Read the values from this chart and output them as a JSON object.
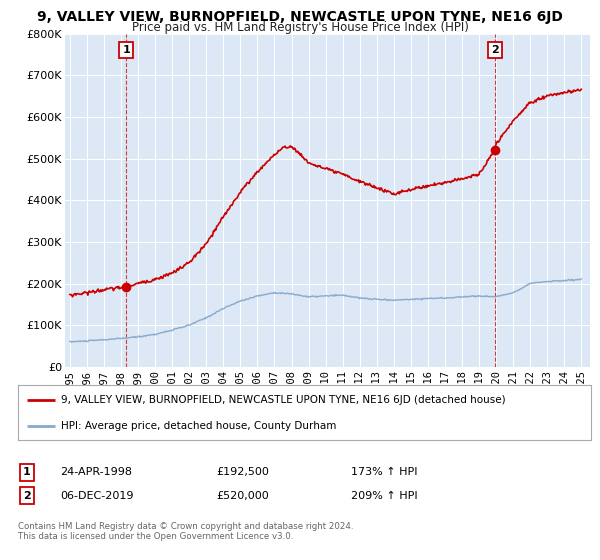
{
  "title": "9, VALLEY VIEW, BURNOPFIELD, NEWCASTLE UPON TYNE, NE16 6JD",
  "subtitle": "Price paid vs. HM Land Registry's House Price Index (HPI)",
  "bg_color": "#dce8f5",
  "red_line_color": "#cc0000",
  "blue_line_color": "#88aacc",
  "sale1_date": 1998.31,
  "sale1_price": 192500,
  "sale1_label": "1",
  "sale2_date": 2019.92,
  "sale2_price": 520000,
  "sale2_label": "2",
  "ylim_min": 0,
  "ylim_max": 800000,
  "xlim_min": 1994.7,
  "xlim_max": 2025.5,
  "legend_line1": "9, VALLEY VIEW, BURNOPFIELD, NEWCASTLE UPON TYNE, NE16 6JD (detached house)",
  "legend_line2": "HPI: Average price, detached house, County Durham",
  "table_row1_num": "1",
  "table_row1_date": "24-APR-1998",
  "table_row1_price": "£192,500",
  "table_row1_hpi": "173% ↑ HPI",
  "table_row2_num": "2",
  "table_row2_date": "06-DEC-2019",
  "table_row2_price": "£520,000",
  "table_row2_hpi": "209% ↑ HPI",
  "footer": "Contains HM Land Registry data © Crown copyright and database right 2024.\nThis data is licensed under the Open Government Licence v3.0.",
  "yticks": [
    0,
    100000,
    200000,
    300000,
    400000,
    500000,
    600000,
    700000,
    800000
  ],
  "ytick_labels": [
    "£0",
    "£100K",
    "£200K",
    "£300K",
    "£400K",
    "£500K",
    "£600K",
    "£700K",
    "£800K"
  ],
  "xticks": [
    1995,
    1996,
    1997,
    1998,
    1999,
    2000,
    2001,
    2002,
    2003,
    2004,
    2005,
    2006,
    2007,
    2008,
    2009,
    2010,
    2011,
    2012,
    2013,
    2014,
    2015,
    2016,
    2017,
    2018,
    2019,
    2020,
    2021,
    2022,
    2023,
    2024,
    2025
  ]
}
